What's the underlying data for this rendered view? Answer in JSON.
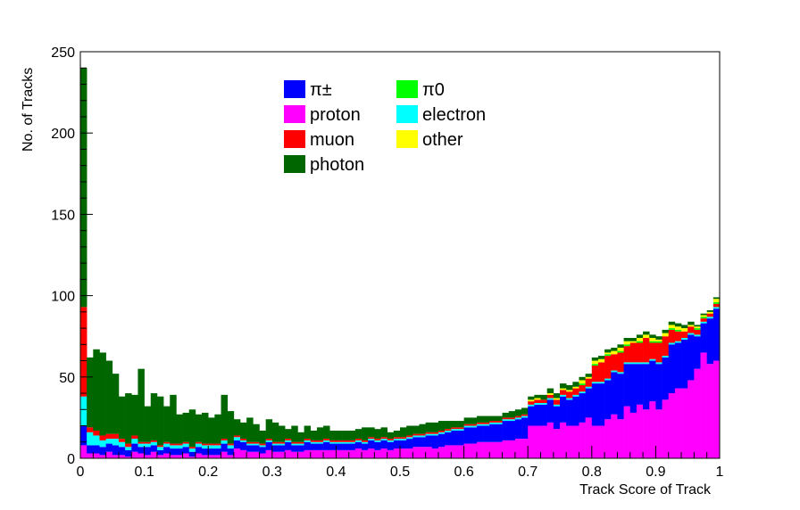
{
  "chart_data": {
    "type": "bar",
    "stacked": true,
    "bin_width": 0.01,
    "xlabel": "Track Score of Track",
    "ylabel": "No. of Tracks",
    "xlim": [
      0,
      1
    ],
    "ylim": [
      0,
      250
    ],
    "x_ticks": [
      "0",
      "0.1",
      "0.2",
      "0.3",
      "0.4",
      "0.5",
      "0.6",
      "0.7",
      "0.8",
      "0.9",
      "1"
    ],
    "y_ticks": [
      "0",
      "50",
      "100",
      "150",
      "200",
      "250"
    ],
    "grid": false,
    "legend_placement": "top-center",
    "legend": [
      {
        "label": "π±",
        "color": "#0000ff"
      },
      {
        "label": "π0",
        "color": "#00ff00"
      },
      {
        "label": "proton",
        "color": "#ff00ff"
      },
      {
        "label": "electron",
        "color": "#00ffff"
      },
      {
        "label": "muon",
        "color": "#ff0000"
      },
      {
        "label": "other",
        "color": "#ffff00"
      },
      {
        "label": "photon",
        "color": "#006600"
      }
    ],
    "series": [
      {
        "name": "proton",
        "color": "#ff00ff",
        "values": [
          8,
          3,
          3,
          2,
          4,
          2,
          2,
          1,
          4,
          3,
          2,
          4,
          2,
          3,
          2,
          2,
          3,
          1,
          3,
          2,
          2,
          2,
          4,
          2,
          6,
          5,
          4,
          4,
          3,
          5,
          4,
          4,
          5,
          4,
          4,
          5,
          5,
          5,
          5,
          5,
          5,
          5,
          5,
          6,
          5,
          6,
          5,
          6,
          5,
          6,
          6,
          6,
          7,
          7,
          7,
          6,
          7,
          8,
          8,
          8,
          9,
          9,
          10,
          10,
          10,
          10,
          11,
          11,
          12,
          12,
          20,
          20,
          20,
          22,
          18,
          22,
          20,
          20,
          22,
          25,
          20,
          20,
          24,
          27,
          24,
          32,
          28,
          33,
          30,
          35,
          30,
          36,
          40,
          43,
          43,
          48,
          55,
          65,
          58,
          60
        ]
      },
      {
        "name": "π±",
        "color": "#0000ff",
        "values": [
          12,
          5,
          5,
          5,
          5,
          6,
          5,
          4,
          5,
          4,
          5,
          4,
          3,
          4,
          4,
          4,
          4,
          3,
          4,
          4,
          4,
          4,
          5,
          4,
          5,
          5,
          4,
          4,
          4,
          5,
          4,
          4,
          5,
          4,
          4,
          5,
          4,
          4,
          5,
          4,
          4,
          4,
          4,
          4,
          4,
          5,
          5,
          5,
          5,
          5,
          5,
          6,
          6,
          6,
          7,
          8,
          8,
          8,
          9,
          9,
          10,
          10,
          10,
          10,
          11,
          11,
          12,
          12,
          12,
          13,
          12,
          13,
          13,
          14,
          14,
          16,
          16,
          18,
          18,
          18,
          26,
          26,
          24,
          26,
          28,
          26,
          30,
          25,
          28,
          25,
          28,
          26,
          30,
          28,
          30,
          28,
          20,
          18,
          28,
          32
        ]
      },
      {
        "name": "electron",
        "color": "#00ffff",
        "values": [
          18,
          8,
          6,
          4,
          3,
          4,
          3,
          2,
          3,
          2,
          2,
          2,
          2,
          2,
          2,
          2,
          2,
          2,
          2,
          2,
          2,
          2,
          2,
          2,
          2,
          1,
          1,
          1,
          1,
          1,
          1,
          1,
          1,
          1,
          1,
          1,
          1,
          1,
          1,
          1,
          1,
          1,
          1,
          1,
          1,
          1,
          1,
          1,
          1,
          1,
          1,
          1,
          1,
          1,
          1,
          1,
          1,
          1,
          1,
          1,
          1,
          1,
          1,
          1,
          1,
          1,
          1,
          1,
          1,
          1,
          1,
          1,
          1,
          1,
          1,
          1,
          1,
          1,
          1,
          1,
          1,
          1,
          1,
          1,
          1,
          1,
          1,
          1,
          1,
          1,
          1,
          1,
          1,
          1,
          1,
          1,
          1,
          1,
          1,
          1
        ]
      },
      {
        "name": "muon",
        "color": "#ff0000",
        "values": [
          55,
          3,
          3,
          3,
          3,
          3,
          2,
          2,
          2,
          1,
          1,
          1,
          1,
          1,
          1,
          1,
          1,
          1,
          1,
          1,
          1,
          1,
          1,
          1,
          1,
          1,
          1,
          1,
          1,
          1,
          1,
          1,
          1,
          1,
          1,
          1,
          1,
          1,
          1,
          1,
          1,
          1,
          1,
          1,
          1,
          1,
          1,
          1,
          1,
          1,
          1,
          1,
          1,
          1,
          1,
          1,
          1,
          1,
          1,
          1,
          1,
          1,
          1,
          1,
          1,
          1,
          1,
          1,
          1,
          1,
          2,
          2,
          2,
          2,
          3,
          3,
          4,
          4,
          4,
          5,
          10,
          12,
          14,
          10,
          12,
          10,
          12,
          12,
          15,
          10,
          12,
          12,
          8,
          6,
          4,
          4,
          3,
          2,
          2,
          2
        ]
      },
      {
        "name": "π0",
        "color": "#00ff00",
        "values": [
          0,
          0,
          0,
          0,
          0,
          0,
          0,
          0,
          0,
          0,
          0,
          0,
          0,
          0,
          0,
          0,
          0,
          0,
          0,
          0,
          0,
          0,
          0,
          0,
          0,
          0,
          0,
          0,
          0,
          0,
          0,
          0,
          0,
          0,
          0,
          0,
          0,
          0,
          0,
          0,
          0,
          0,
          0,
          0,
          0,
          0,
          0,
          0,
          0,
          0,
          0,
          0,
          0,
          0,
          0,
          0,
          0,
          0,
          0,
          0,
          0,
          0,
          0,
          0,
          0,
          0,
          0,
          0,
          0,
          0,
          0,
          0,
          0,
          0,
          0,
          0,
          0,
          0,
          1,
          0,
          1,
          0,
          1,
          0,
          1,
          1,
          0,
          1,
          0,
          1,
          1,
          0,
          1,
          1,
          0,
          0,
          1,
          1,
          0,
          1
        ]
      },
      {
        "name": "other",
        "color": "#ffff00",
        "values": [
          0,
          0,
          0,
          0,
          0,
          0,
          0,
          0,
          0,
          0,
          0,
          0,
          0,
          0,
          0,
          0,
          0,
          0,
          0,
          0,
          0,
          0,
          0,
          0,
          0,
          0,
          0,
          0,
          0,
          0,
          0,
          0,
          0,
          0,
          0,
          0,
          0,
          0,
          0,
          0,
          0,
          0,
          0,
          0,
          0,
          0,
          0,
          0,
          0,
          0,
          0,
          0,
          0,
          0,
          0,
          0,
          0,
          0,
          0,
          0,
          0,
          0,
          0,
          0,
          0,
          0,
          0,
          0,
          0,
          0,
          1,
          1,
          0,
          1,
          1,
          1,
          1,
          1,
          2,
          1,
          2,
          2,
          1,
          2,
          2,
          2,
          1,
          2,
          2,
          2,
          1,
          2,
          2,
          2,
          2,
          1,
          1,
          1,
          1,
          2
        ]
      },
      {
        "name": "photon",
        "color": "#006600",
        "values": [
          147,
          43,
          50,
          51,
          45,
          37,
          26,
          31,
          25,
          45,
          22,
          29,
          30,
          22,
          30,
          18,
          18,
          23,
          17,
          19,
          16,
          18,
          27,
          20,
          10,
          10,
          15,
          11,
          8,
          12,
          12,
          10,
          6,
          10,
          6,
          8,
          6,
          8,
          8,
          6,
          6,
          6,
          6,
          6,
          8,
          6,
          6,
          6,
          4,
          4,
          6,
          6,
          5,
          6,
          6,
          6,
          6,
          5,
          4,
          4,
          4,
          4,
          4,
          4,
          3,
          3,
          3,
          4,
          4,
          4,
          2,
          2,
          3,
          3,
          3,
          3,
          3,
          3,
          2,
          2,
          2,
          2,
          2,
          2,
          2,
          2,
          2,
          2,
          2,
          2,
          2,
          2,
          2,
          2,
          2,
          2,
          1,
          1,
          1,
          1
        ]
      }
    ]
  }
}
